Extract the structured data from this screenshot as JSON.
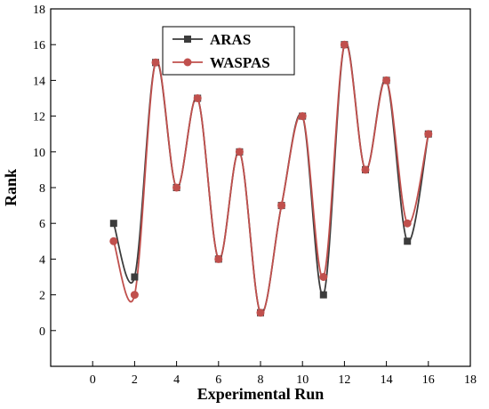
{
  "chart_data": {
    "type": "line",
    "title": "",
    "xlabel": "Experimental Run",
    "ylabel": "Rank",
    "xlim": [
      -2,
      18
    ],
    "ylim": [
      -2,
      18
    ],
    "x_ticks": [
      0,
      2,
      4,
      6,
      8,
      10,
      12,
      14,
      16,
      18
    ],
    "y_ticks": [
      0,
      2,
      4,
      6,
      8,
      10,
      12,
      14,
      16,
      18
    ],
    "grid": false,
    "legend_position": "top-center",
    "x": [
      1,
      2,
      3,
      4,
      5,
      6,
      7,
      8,
      9,
      10,
      11,
      12,
      13,
      14,
      15,
      16
    ],
    "series": [
      {
        "name": "ARAS",
        "values": [
          6,
          3,
          15,
          8,
          13,
          4,
          10,
          1,
          7,
          12,
          2,
          16,
          9,
          14,
          5,
          11
        ],
        "color": "#3c3c3c",
        "marker": "square"
      },
      {
        "name": "WASPAS",
        "values": [
          5,
          2,
          15,
          8,
          13,
          4,
          10,
          1,
          7,
          12,
          3,
          16,
          9,
          14,
          6,
          11
        ],
        "color": "#c0504d",
        "marker": "circle"
      }
    ]
  }
}
